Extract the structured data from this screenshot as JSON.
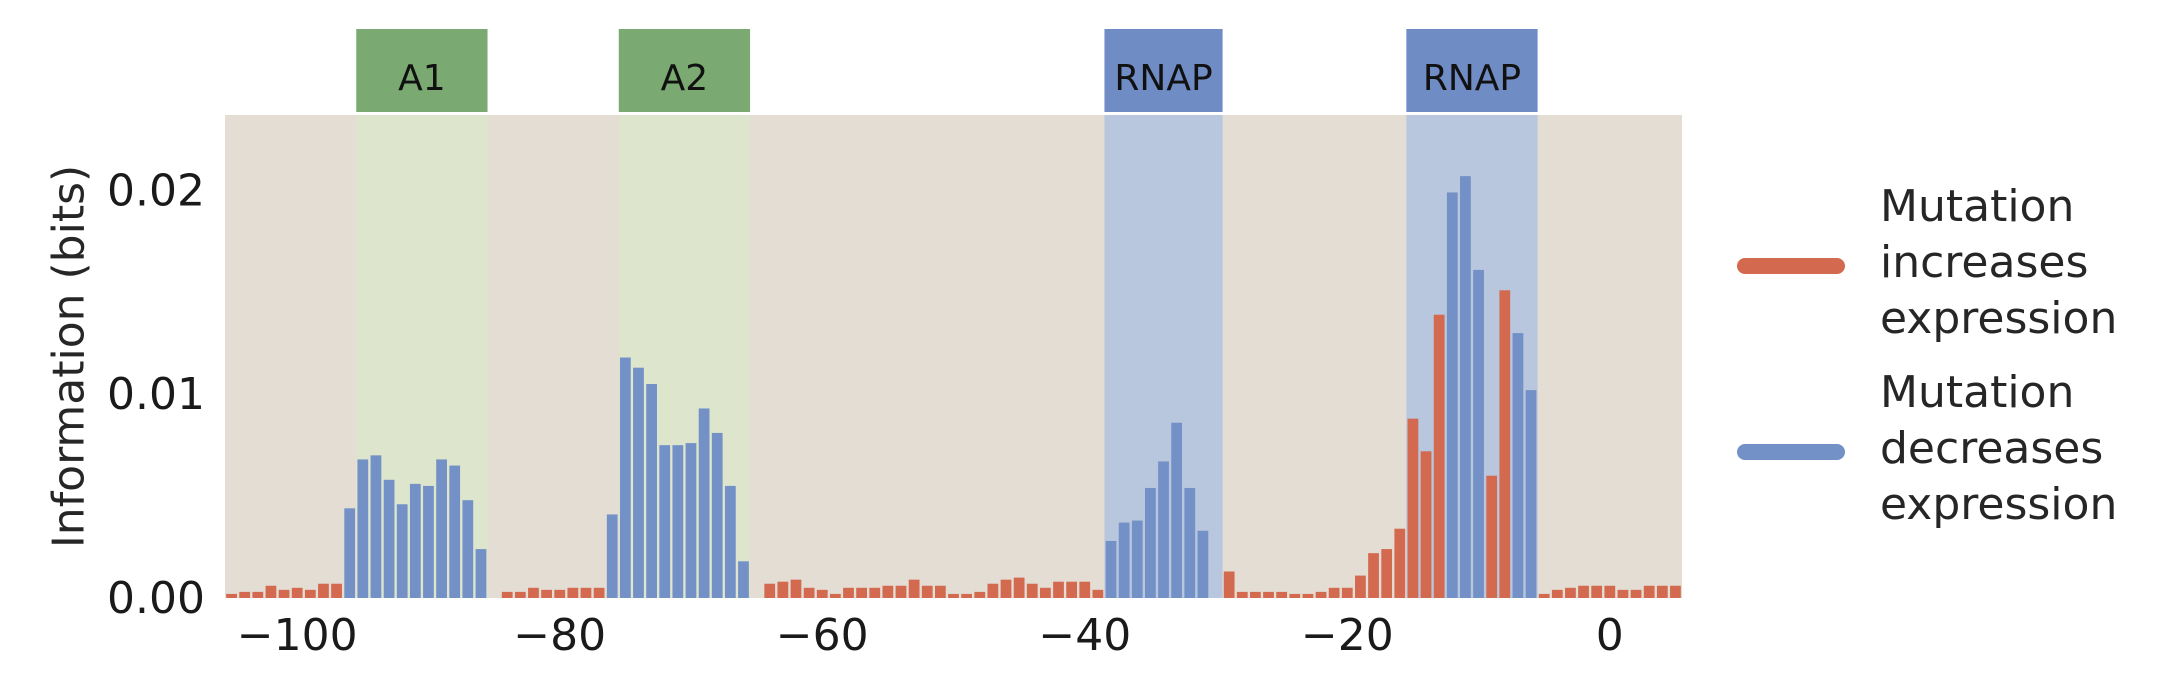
{
  "chart_data": {
    "type": "bar",
    "xlabel": "",
    "ylabel": "Information (bits)",
    "xlim": [
      -105.5,
      5.5
    ],
    "ylim": [
      0,
      0.0237
    ],
    "xticks": [
      -100,
      -80,
      -60,
      -40,
      -20,
      0
    ],
    "xtick_labels": [
      "−100",
      "−80",
      "−60",
      "−40",
      "−20",
      "0"
    ],
    "yticks": [
      0,
      0.01,
      0.02
    ],
    "ytick_labels": [
      "0.00",
      "0.01",
      "0.02"
    ],
    "grid": false,
    "legend_placement": "right",
    "colors": {
      "background": "#e3ddd3",
      "increase": "#d3694f",
      "decrease": "#7391c6",
      "activator_region": "#dde6cc",
      "activator_box": "#7aaa71",
      "rnap_region": "#b9c7de",
      "rnap_box": "#6f8cc4"
    },
    "regions": [
      {
        "label": "A1",
        "start": -95.5,
        "end": -85.5,
        "kind": "activator"
      },
      {
        "label": "A2",
        "start": -75.5,
        "end": -65.5,
        "kind": "activator"
      },
      {
        "label": "RNAP",
        "start": -38.5,
        "end": -29.5,
        "kind": "rnap"
      },
      {
        "label": "RNAP",
        "start": -15.5,
        "end": -5.5,
        "kind": "rnap"
      }
    ],
    "series": [
      {
        "name": "Mutation increases expression",
        "color": "#d3694f",
        "points": [
          [
            -105,
            0.0002
          ],
          [
            -104,
            0.0003
          ],
          [
            -103,
            0.0003
          ],
          [
            -102,
            0.0006
          ],
          [
            -101,
            0.0004
          ],
          [
            -100,
            0.0005
          ],
          [
            -99,
            0.0004
          ],
          [
            -98,
            0.0007
          ],
          [
            -97,
            0.0007
          ],
          [
            -84,
            0.0003
          ],
          [
            -83,
            0.0003
          ],
          [
            -82,
            0.0005
          ],
          [
            -81,
            0.0004
          ],
          [
            -80,
            0.0004
          ],
          [
            -79,
            0.0005
          ],
          [
            -78,
            0.0005
          ],
          [
            -77,
            0.0005
          ],
          [
            -64,
            0.0007
          ],
          [
            -63,
            0.0008
          ],
          [
            -62,
            0.0009
          ],
          [
            -61,
            0.0005
          ],
          [
            -60,
            0.0004
          ],
          [
            -59,
            0.0002
          ],
          [
            -58,
            0.0005
          ],
          [
            -57,
            0.0005
          ],
          [
            -56,
            0.0005
          ],
          [
            -55,
            0.0006
          ],
          [
            -54,
            0.0006
          ],
          [
            -53,
            0.0009
          ],
          [
            -52,
            0.0006
          ],
          [
            -51,
            0.0006
          ],
          [
            -50,
            0.0002
          ],
          [
            -49,
            0.0002
          ],
          [
            -48,
            0.0003
          ],
          [
            -47,
            0.0007
          ],
          [
            -46,
            0.0009
          ],
          [
            -45,
            0.001
          ],
          [
            -44,
            0.0007
          ],
          [
            -43,
            0.0005
          ],
          [
            -42,
            0.0008
          ],
          [
            -41,
            0.0008
          ],
          [
            -40,
            0.0008
          ],
          [
            -39,
            0.0004
          ],
          [
            -29,
            0.0013
          ],
          [
            -28,
            0.0003
          ],
          [
            -27,
            0.0003
          ],
          [
            -26,
            0.0003
          ],
          [
            -25,
            0.0003
          ],
          [
            -24,
            0.0002
          ],
          [
            -23,
            0.0002
          ],
          [
            -22,
            0.0003
          ],
          [
            -21,
            0.0005
          ],
          [
            -20,
            0.0005
          ],
          [
            -19,
            0.0011
          ],
          [
            -18,
            0.0022
          ],
          [
            -17,
            0.0024
          ],
          [
            -16,
            0.0034
          ],
          [
            -15,
            0.0088
          ],
          [
            -14,
            0.0072
          ],
          [
            -13,
            0.0139
          ],
          [
            -9,
            0.006
          ],
          [
            -8,
            0.0151
          ],
          [
            -5,
            0.0002
          ],
          [
            -4,
            0.0004
          ],
          [
            -3,
            0.0005
          ],
          [
            -2,
            0.0006
          ],
          [
            -1,
            0.0006
          ],
          [
            0,
            0.0006
          ],
          [
            1,
            0.0004
          ],
          [
            2,
            0.0004
          ],
          [
            3,
            0.0006
          ],
          [
            4,
            0.0006
          ],
          [
            5,
            0.0006
          ]
        ]
      },
      {
        "name": "Mutation decreases expression",
        "color": "#7391c6",
        "points": [
          [
            -96,
            0.0044
          ],
          [
            -95,
            0.0068
          ],
          [
            -94,
            0.007
          ],
          [
            -93,
            0.0058
          ],
          [
            -92,
            0.0046
          ],
          [
            -91,
            0.0056
          ],
          [
            -90,
            0.0055
          ],
          [
            -89,
            0.0068
          ],
          [
            -88,
            0.0065
          ],
          [
            -87,
            0.0048
          ],
          [
            -86,
            0.0024
          ],
          [
            -76,
            0.0041
          ],
          [
            -75,
            0.0118
          ],
          [
            -74,
            0.0113
          ],
          [
            -73,
            0.0105
          ],
          [
            -72,
            0.0075
          ],
          [
            -71,
            0.0075
          ],
          [
            -70,
            0.0076
          ],
          [
            -69,
            0.0093
          ],
          [
            -68,
            0.0081
          ],
          [
            -67,
            0.0055
          ],
          [
            -66,
            0.0018
          ],
          [
            -38,
            0.0028
          ],
          [
            -37,
            0.0037
          ],
          [
            -36,
            0.0038
          ],
          [
            -35,
            0.0054
          ],
          [
            -34,
            0.0067
          ],
          [
            -33,
            0.0086
          ],
          [
            -32,
            0.0054
          ],
          [
            -31,
            0.0033
          ],
          [
            -12,
            0.0199
          ],
          [
            -11,
            0.0207
          ],
          [
            -10,
            0.0161
          ],
          [
            -7,
            0.013
          ],
          [
            -6,
            0.0102
          ]
        ]
      }
    ]
  },
  "legend": {
    "increase": [
      "Mutation",
      "increases",
      "expression"
    ],
    "decrease": [
      "Mutation",
      "decreases",
      "expression"
    ]
  }
}
